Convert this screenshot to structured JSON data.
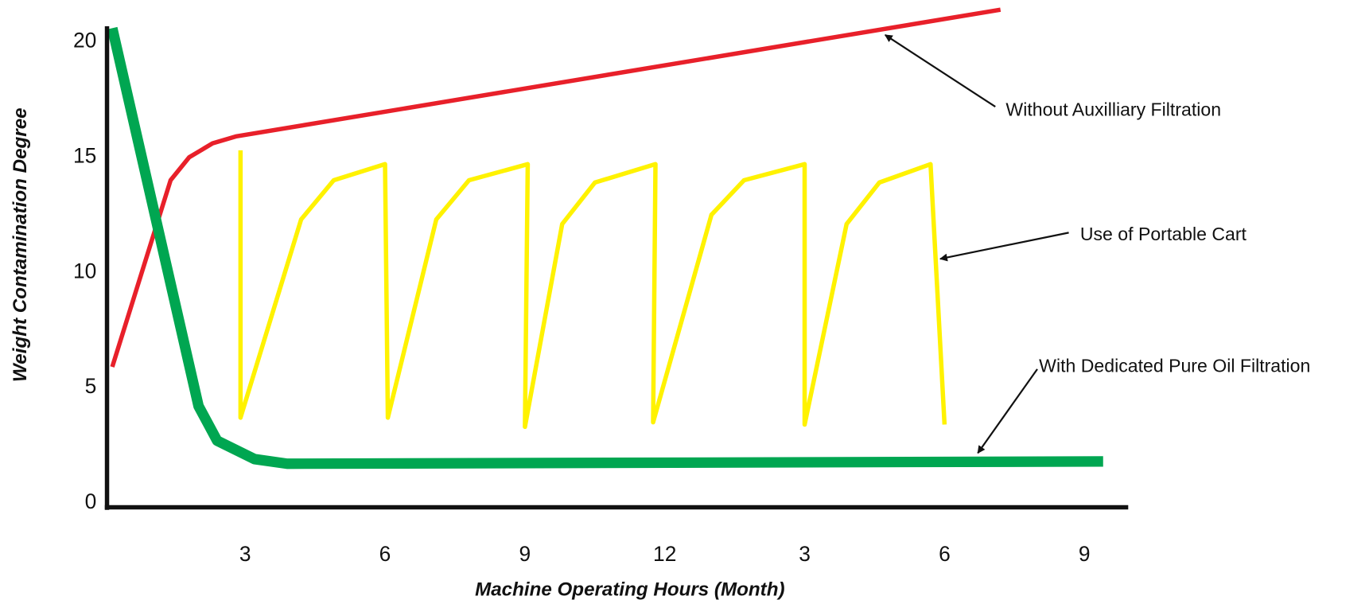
{
  "chart_data": {
    "type": "line",
    "x_label": "Machine Operating Hours (Month)",
    "y_label": "Weight Contamination Degree",
    "xlim": [
      0,
      22
    ],
    "ylim": [
      0,
      21
    ],
    "xticks": [
      3,
      6,
      9,
      12,
      {
        "value": 15,
        "label": "3"
      },
      {
        "value": 18,
        "label": "6"
      },
      {
        "value": 21,
        "label": "9"
      }
    ],
    "yticks": [
      0,
      5,
      10,
      15,
      20
    ],
    "grid": false,
    "series": [
      {
        "name": "Without Auxilliary Filtration",
        "color": "#e8202a",
        "x": [
          0.15,
          1.4,
          1.8,
          2.3,
          2.8,
          19.2
        ],
        "values": [
          5.9,
          14.0,
          15.0,
          15.6,
          15.9,
          21.4
        ]
      },
      {
        "name": "Use of Portable Cart",
        "color": "#fff200",
        "x": [
          2.9,
          2.9,
          4.2,
          4.9,
          6.0,
          6.06,
          7.1,
          7.8,
          9.06,
          9.0,
          9.8,
          10.5,
          11.8,
          11.75,
          13.0,
          13.7,
          15.0,
          15.0,
          15.9,
          16.6,
          17.7,
          18.0
        ],
        "values": [
          15.3,
          3.7,
          12.3,
          14.0,
          14.7,
          3.7,
          12.3,
          14.0,
          14.7,
          3.3,
          12.1,
          13.9,
          14.7,
          3.5,
          12.5,
          14.0,
          14.7,
          3.4,
          12.1,
          13.9,
          14.7,
          3.4
        ]
      },
      {
        "name": "With Dedicated Pure Oil Filtration",
        "color": "#00a651",
        "x": [
          0.15,
          2.0,
          2.4,
          3.2,
          3.9,
          21.4
        ],
        "values": [
          20.6,
          4.2,
          2.7,
          1.9,
          1.7,
          1.8
        ]
      }
    ]
  }
}
